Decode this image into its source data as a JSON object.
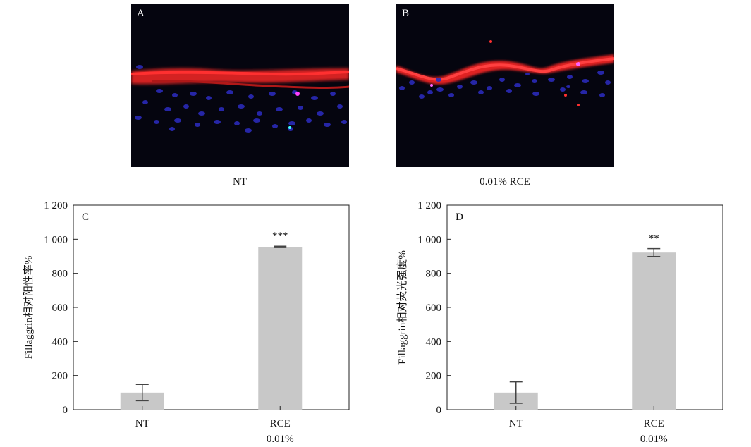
{
  "panels": [
    {
      "letter": "A",
      "caption": "NT"
    },
    {
      "letter": "B",
      "caption": "0.01% RCE"
    }
  ],
  "chart_data": [
    {
      "type": "bar",
      "panel": "C",
      "categories": [
        "NT",
        "RCE"
      ],
      "category_sublabels": [
        "",
        "0.01%"
      ],
      "values": [
        100,
        955
      ],
      "errors": [
        48,
        4
      ],
      "significance": [
        "",
        "***"
      ],
      "ylabel": "Fillaggrin相对阳性率%",
      "ylim": [
        0,
        1200
      ],
      "yticks": [
        0,
        200,
        400,
        600,
        800,
        1000,
        1200
      ],
      "ytick_labels": [
        "0",
        "200",
        "400",
        "600",
        "800",
        "1 000",
        "1 200"
      ],
      "bar_color": "#c8c8c8",
      "grid": false
    },
    {
      "type": "bar",
      "panel": "D",
      "categories": [
        "NT",
        "RCE"
      ],
      "category_sublabels": [
        "",
        "0.01%"
      ],
      "values": [
        100,
        922
      ],
      "errors": [
        63,
        23
      ],
      "significance": [
        "",
        "**"
      ],
      "ylabel": "Fillaggrin相对荧光强度%",
      "ylim": [
        0,
        1200
      ],
      "yticks": [
        0,
        200,
        400,
        600,
        800,
        1000,
        1200
      ],
      "ytick_labels": [
        "0",
        "200",
        "400",
        "600",
        "800",
        "1 000",
        "1 200"
      ],
      "bar_color": "#c8c8c8",
      "grid": false
    }
  ]
}
